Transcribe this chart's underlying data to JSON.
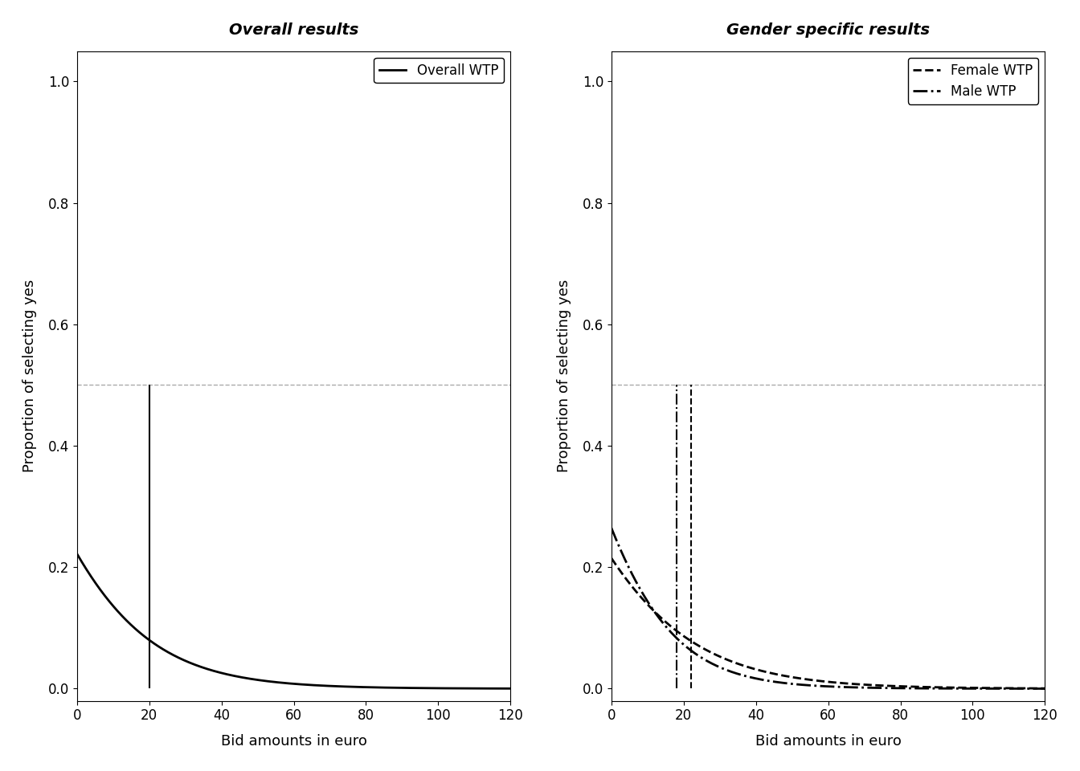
{
  "left_title": "Overall results",
  "right_title": "Gender specific results",
  "xlabel": "Bid amounts in euro",
  "ylabel": "Proportion of selecting yes",
  "xlim": [
    0,
    120
  ],
  "ylim": [
    -0.02,
    1.05
  ],
  "xticks": [
    0,
    20,
    40,
    60,
    80,
    100,
    120
  ],
  "yticks": [
    0.0,
    0.2,
    0.4,
    0.6,
    0.8,
    1.0
  ],
  "hline_y": 0.5,
  "overall_alpha": -1.2527,
  "overall_beta": -0.0594,
  "overall_vline_x": 20,
  "female_alpha": -1.2952,
  "female_beta": -0.053,
  "female_vline_x": 22,
  "male_alpha": -1.0217,
  "male_beta": -0.0762,
  "male_vline_x": 18,
  "color_main": "#000000",
  "color_hline": "#aaaaaa",
  "background_color": "#ffffff",
  "title_fontsize": 14,
  "label_fontsize": 13,
  "tick_fontsize": 12,
  "legend_fontsize": 12
}
